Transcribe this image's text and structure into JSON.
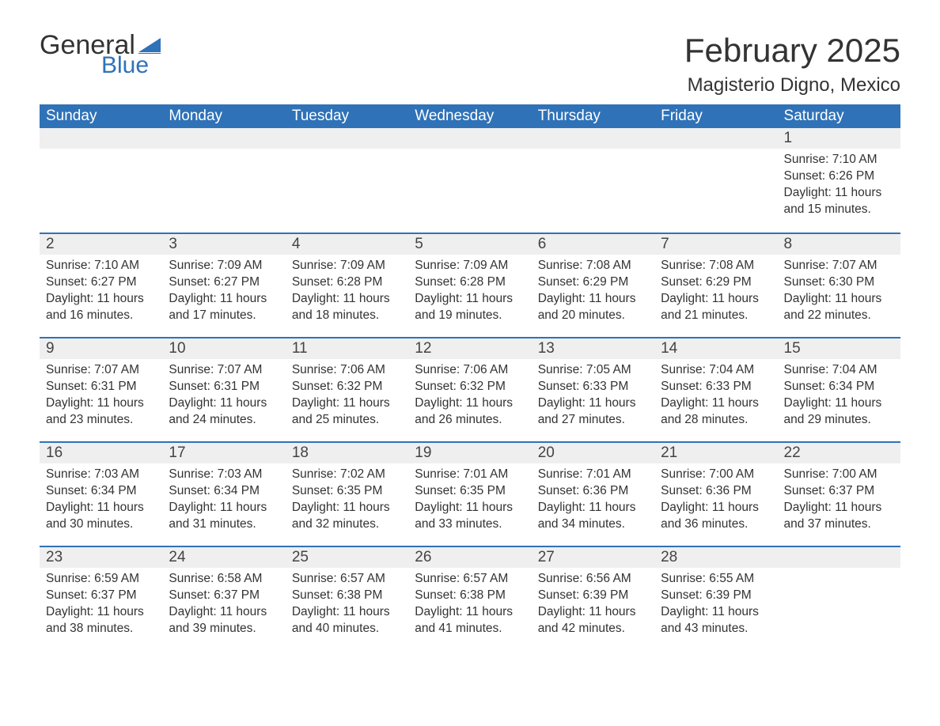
{
  "brand": {
    "word1": "General",
    "word2": "Blue",
    "word1_color": "#333333",
    "word2_color": "#2f72b8",
    "flag_color": "#2f72b8"
  },
  "title": {
    "month_year": "February 2025",
    "location": "Magisterio Digno, Mexico",
    "title_fontsize": 42,
    "location_fontsize": 24
  },
  "calendar": {
    "type": "table",
    "header_bg": "#2f72b8",
    "header_fg": "#ffffff",
    "row_separator_color": "#2f72b8",
    "daynum_bg": "#efefef",
    "body_fontsize": 15.5,
    "columns": [
      "Sunday",
      "Monday",
      "Tuesday",
      "Wednesday",
      "Thursday",
      "Friday",
      "Saturday"
    ],
    "weeks": [
      [
        null,
        null,
        null,
        null,
        null,
        null,
        {
          "day": "1",
          "sunrise": "7:10 AM",
          "sunset": "6:26 PM",
          "daylight": "11 hours and 15 minutes."
        }
      ],
      [
        {
          "day": "2",
          "sunrise": "7:10 AM",
          "sunset": "6:27 PM",
          "daylight": "11 hours and 16 minutes."
        },
        {
          "day": "3",
          "sunrise": "7:09 AM",
          "sunset": "6:27 PM",
          "daylight": "11 hours and 17 minutes."
        },
        {
          "day": "4",
          "sunrise": "7:09 AM",
          "sunset": "6:28 PM",
          "daylight": "11 hours and 18 minutes."
        },
        {
          "day": "5",
          "sunrise": "7:09 AM",
          "sunset": "6:28 PM",
          "daylight": "11 hours and 19 minutes."
        },
        {
          "day": "6",
          "sunrise": "7:08 AM",
          "sunset": "6:29 PM",
          "daylight": "11 hours and 20 minutes."
        },
        {
          "day": "7",
          "sunrise": "7:08 AM",
          "sunset": "6:29 PM",
          "daylight": "11 hours and 21 minutes."
        },
        {
          "day": "8",
          "sunrise": "7:07 AM",
          "sunset": "6:30 PM",
          "daylight": "11 hours and 22 minutes."
        }
      ],
      [
        {
          "day": "9",
          "sunrise": "7:07 AM",
          "sunset": "6:31 PM",
          "daylight": "11 hours and 23 minutes."
        },
        {
          "day": "10",
          "sunrise": "7:07 AM",
          "sunset": "6:31 PM",
          "daylight": "11 hours and 24 minutes."
        },
        {
          "day": "11",
          "sunrise": "7:06 AM",
          "sunset": "6:32 PM",
          "daylight": "11 hours and 25 minutes."
        },
        {
          "day": "12",
          "sunrise": "7:06 AM",
          "sunset": "6:32 PM",
          "daylight": "11 hours and 26 minutes."
        },
        {
          "day": "13",
          "sunrise": "7:05 AM",
          "sunset": "6:33 PM",
          "daylight": "11 hours and 27 minutes."
        },
        {
          "day": "14",
          "sunrise": "7:04 AM",
          "sunset": "6:33 PM",
          "daylight": "11 hours and 28 minutes."
        },
        {
          "day": "15",
          "sunrise": "7:04 AM",
          "sunset": "6:34 PM",
          "daylight": "11 hours and 29 minutes."
        }
      ],
      [
        {
          "day": "16",
          "sunrise": "7:03 AM",
          "sunset": "6:34 PM",
          "daylight": "11 hours and 30 minutes."
        },
        {
          "day": "17",
          "sunrise": "7:03 AM",
          "sunset": "6:34 PM",
          "daylight": "11 hours and 31 minutes."
        },
        {
          "day": "18",
          "sunrise": "7:02 AM",
          "sunset": "6:35 PM",
          "daylight": "11 hours and 32 minutes."
        },
        {
          "day": "19",
          "sunrise": "7:01 AM",
          "sunset": "6:35 PM",
          "daylight": "11 hours and 33 minutes."
        },
        {
          "day": "20",
          "sunrise": "7:01 AM",
          "sunset": "6:36 PM",
          "daylight": "11 hours and 34 minutes."
        },
        {
          "day": "21",
          "sunrise": "7:00 AM",
          "sunset": "6:36 PM",
          "daylight": "11 hours and 36 minutes."
        },
        {
          "day": "22",
          "sunrise": "7:00 AM",
          "sunset": "6:37 PM",
          "daylight": "11 hours and 37 minutes."
        }
      ],
      [
        {
          "day": "23",
          "sunrise": "6:59 AM",
          "sunset": "6:37 PM",
          "daylight": "11 hours and 38 minutes."
        },
        {
          "day": "24",
          "sunrise": "6:58 AM",
          "sunset": "6:37 PM",
          "daylight": "11 hours and 39 minutes."
        },
        {
          "day": "25",
          "sunrise": "6:57 AM",
          "sunset": "6:38 PM",
          "daylight": "11 hours and 40 minutes."
        },
        {
          "day": "26",
          "sunrise": "6:57 AM",
          "sunset": "6:38 PM",
          "daylight": "11 hours and 41 minutes."
        },
        {
          "day": "27",
          "sunrise": "6:56 AM",
          "sunset": "6:39 PM",
          "daylight": "11 hours and 42 minutes."
        },
        {
          "day": "28",
          "sunrise": "6:55 AM",
          "sunset": "6:39 PM",
          "daylight": "11 hours and 43 minutes."
        },
        null
      ]
    ],
    "labels": {
      "sunrise_prefix": "Sunrise: ",
      "sunset_prefix": "Sunset: ",
      "daylight_prefix": "Daylight: "
    }
  }
}
